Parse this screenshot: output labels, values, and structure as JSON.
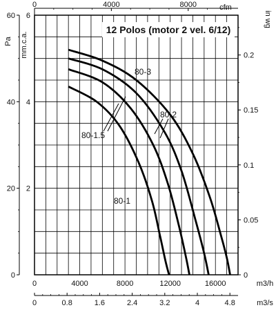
{
  "chart_data": {
    "type": "line",
    "title": "12 Polos (motor 2 vel. 6/12)",
    "x_axis_m3h": {
      "unit": "m3/h",
      "range": [
        0,
        18000
      ],
      "tick_labels": [
        "0",
        "4000",
        "8000",
        "12000",
        "16000"
      ]
    },
    "x_axis_m3s": {
      "unit": "m3/s",
      "tick_labels": [
        "0",
        "0.8",
        "1.6",
        "2.4",
        "3.2",
        "4",
        "4.8"
      ]
    },
    "x_axis_cfm": {
      "unit": "cfm",
      "tick_labels": [
        "0",
        "4000",
        "8000"
      ]
    },
    "y_axis_pa": {
      "unit": "Pa",
      "range": [
        0,
        60
      ],
      "tick_labels": [
        "0",
        "20",
        "40",
        "60"
      ]
    },
    "y_axis_mmca": {
      "unit": "mm.c.a.",
      "range": [
        0,
        6
      ],
      "tick_labels": [
        "2",
        "4",
        "6"
      ]
    },
    "y_axis_inwg": {
      "unit": "in wg",
      "tick_labels": [
        "0",
        "0.05",
        "0.1",
        "0.15",
        "0.2"
      ]
    },
    "series": [
      {
        "name": "80-3",
        "x": [
          3000,
          6000,
          9000,
          12000,
          14000,
          15500,
          16500,
          17000,
          17300
        ],
        "y": [
          5.2,
          4.95,
          4.5,
          3.7,
          2.8,
          1.8,
          0.9,
          0.4,
          0.0
        ]
      },
      {
        "name": "80-2",
        "x": [
          3000,
          6000,
          9000,
          11500,
          13000,
          14200,
          15000,
          15400
        ],
        "y": [
          5.0,
          4.75,
          4.2,
          3.3,
          2.4,
          1.3,
          0.5,
          0.0
        ]
      },
      {
        "name": "80-1.5",
        "x": [
          3000,
          6000,
          8500,
          10500,
          11800,
          12800,
          13400,
          13700
        ],
        "y": [
          4.75,
          4.45,
          3.85,
          3.0,
          2.1,
          1.1,
          0.4,
          0.0
        ]
      },
      {
        "name": "80-1",
        "x": [
          3000,
          5500,
          7500,
          9200,
          10400,
          11100,
          11600,
          11900
        ],
        "y": [
          4.35,
          4.0,
          3.45,
          2.6,
          1.7,
          0.9,
          0.3,
          0.0
        ]
      }
    ],
    "labels": {
      "pa": "Pa",
      "mmca": "mm.c.a.",
      "cfm": "cfm",
      "inwg": "in wg",
      "m3h": "m3/h",
      "m3s": "m3/s"
    },
    "grid": true
  }
}
